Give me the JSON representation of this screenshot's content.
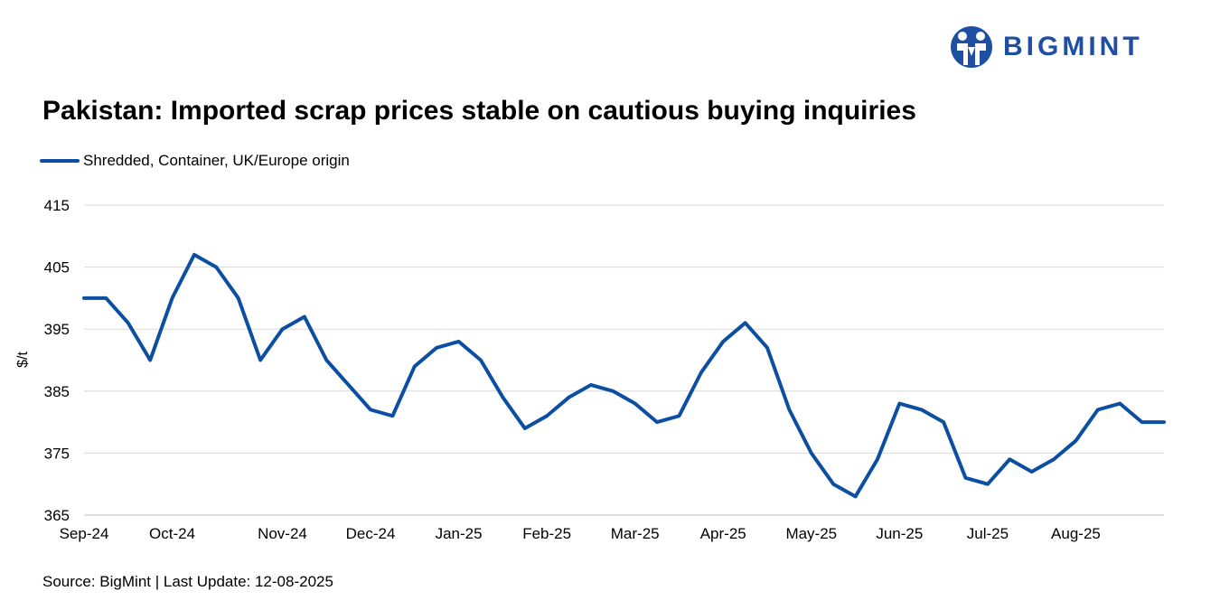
{
  "brand": {
    "name": "BIGMINT",
    "color": "#1f4fa3"
  },
  "chart_data": {
    "type": "line",
    "title": "Pakistan: Imported scrap prices stable on cautious buying inquiries",
    "ylabel": "$/t",
    "xlabel": "",
    "ylim": [
      365,
      415
    ],
    "yticks": [
      415,
      405,
      395,
      385,
      375,
      365
    ],
    "grid": true,
    "legend_position": "top-left",
    "x_tick_labels": [
      "Sep-24",
      "Oct-24",
      "Nov-24",
      "Dec-24",
      "Jan-25",
      "Feb-25",
      "Mar-25",
      "Apr-25",
      "May-25",
      "Jun-25",
      "Jul-25",
      "Aug-25"
    ],
    "x_tick_indices": [
      0,
      4,
      9,
      13,
      17,
      21,
      25,
      29,
      33,
      37,
      41,
      45
    ],
    "series": [
      {
        "name": "Shredded, Container, UK/Europe origin",
        "color": "#0b4ea2",
        "values": [
          400,
          400,
          396,
          390,
          400,
          407,
          405,
          400,
          390,
          395,
          397,
          390,
          386,
          382,
          381,
          389,
          392,
          393,
          390,
          384,
          379,
          381,
          384,
          386,
          385,
          383,
          380,
          381,
          388,
          393,
          396,
          392,
          382,
          375,
          370,
          368,
          374,
          383,
          382,
          380,
          371,
          370,
          374,
          372,
          374,
          377,
          382,
          383,
          380,
          380
        ]
      }
    ]
  },
  "footer": {
    "source": "Source: BigMint | Last Update: 12-08-2025"
  }
}
